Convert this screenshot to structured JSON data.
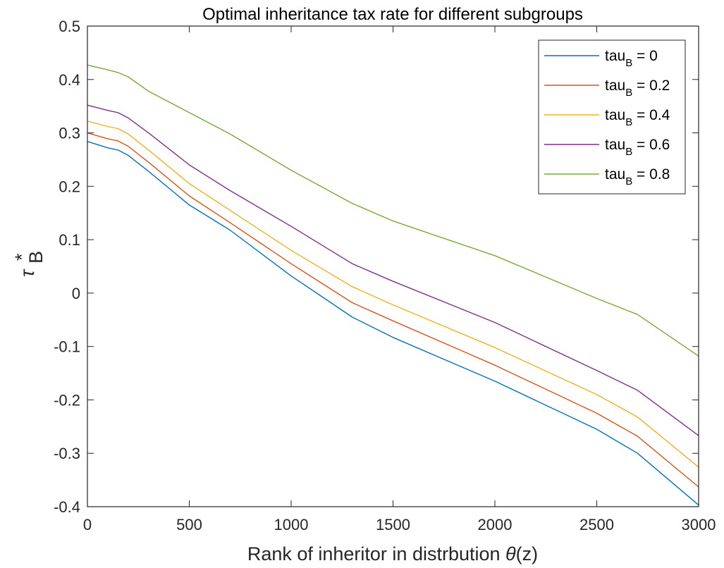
{
  "chart_data": {
    "type": "line",
    "title": "Optimal inheritance tax rate for different subgroups",
    "xlabel_prefix": "Rank of inheritor in distrbution ",
    "xlabel_symbol": "θ",
    "xlabel_suffix": "(z)",
    "ylabel_symbol": "τ",
    "ylabel_superscript": "*",
    "ylabel_subscript": "B",
    "xlim": [
      0,
      3000
    ],
    "ylim": [
      -0.4,
      0.5
    ],
    "xticks": [
      0,
      500,
      1000,
      1500,
      2000,
      2500,
      3000
    ],
    "xtick_labels": [
      "0",
      "500",
      "1000",
      "1500",
      "2000",
      "2500",
      "3000"
    ],
    "yticks": [
      -0.4,
      -0.3,
      -0.2,
      -0.1,
      0,
      0.1,
      0.2,
      0.3,
      0.4,
      0.5
    ],
    "ytick_labels": [
      "-0.4",
      "-0.3",
      "-0.2",
      "-0.1",
      "0",
      "0.1",
      "0.2",
      "0.3",
      "0.4",
      "0.5"
    ],
    "grid": false,
    "legend_position": "top-right",
    "x": [
      0,
      100,
      150,
      200,
      300,
      500,
      700,
      1000,
      1300,
      1500,
      2000,
      2500,
      2700,
      3000
    ],
    "series": [
      {
        "name_prefix": "tau",
        "name_sub": "B",
        "name_suffix": " = 0",
        "color": "#0072BD",
        "values": [
          0.284,
          0.272,
          0.268,
          0.258,
          0.228,
          0.165,
          0.118,
          0.032,
          -0.045,
          -0.083,
          -0.165,
          -0.255,
          -0.3,
          -0.397
        ]
      },
      {
        "name_prefix": "tau",
        "name_sub": "B",
        "name_suffix": " = 0.2",
        "color": "#D95319",
        "values": [
          0.3,
          0.289,
          0.285,
          0.275,
          0.245,
          0.182,
          0.132,
          0.055,
          -0.018,
          -0.052,
          -0.135,
          -0.225,
          -0.268,
          -0.363
        ]
      },
      {
        "name_prefix": "tau",
        "name_sub": "B",
        "name_suffix": " = 0.4",
        "color": "#EDB120",
        "values": [
          0.322,
          0.312,
          0.308,
          0.298,
          0.268,
          0.205,
          0.155,
          0.08,
          0.012,
          -0.022,
          -0.102,
          -0.19,
          -0.232,
          -0.326
        ]
      },
      {
        "name_prefix": "tau",
        "name_sub": "B",
        "name_suffix": " = 0.6",
        "color": "#7E2F8E",
        "values": [
          0.352,
          0.342,
          0.338,
          0.328,
          0.3,
          0.24,
          0.192,
          0.125,
          0.055,
          0.022,
          -0.055,
          -0.145,
          -0.182,
          -0.267
        ]
      },
      {
        "name_prefix": "tau",
        "name_sub": "B",
        "name_suffix": " = 0.8",
        "color": "#77AC30",
        "values": [
          0.427,
          0.418,
          0.413,
          0.405,
          0.378,
          0.338,
          0.298,
          0.23,
          0.168,
          0.135,
          0.07,
          -0.01,
          -0.04,
          -0.118
        ]
      }
    ]
  }
}
